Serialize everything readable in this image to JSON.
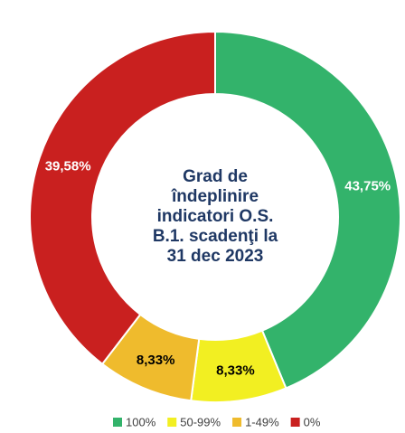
{
  "chart_data": {
    "type": "donut",
    "title": [
      "Grad de",
      "îndeplinire",
      "indicatori O.S.",
      "B.1. scadenţi la",
      "31 dec 2023"
    ],
    "categories": [
      "100%",
      "50-99%",
      "1-49%",
      "0%"
    ],
    "values": [
      43.75,
      8.33,
      8.33,
      39.58
    ],
    "value_labels": [
      "43,75%",
      "8,33%",
      "8,33%",
      "39,58%"
    ],
    "colors": [
      "#33b36b",
      "#f2ef22",
      "#efbb2d",
      "#c9201f"
    ],
    "label_colors": [
      "#ffffff",
      "#000000",
      "#000000",
      "#ffffff"
    ],
    "legend": "bottom"
  }
}
